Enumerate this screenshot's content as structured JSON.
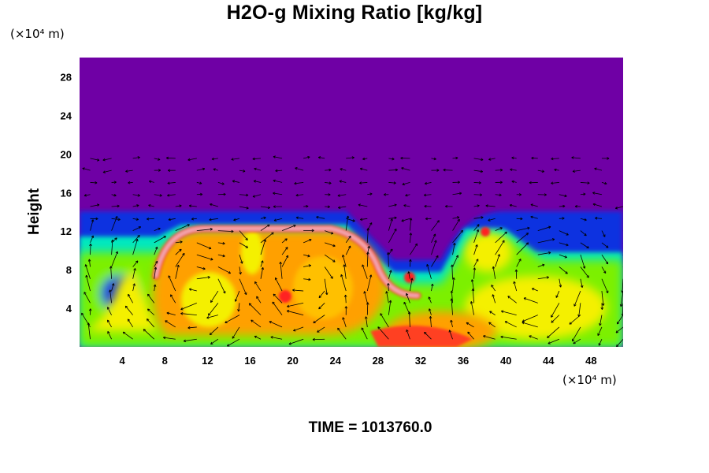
{
  "chart_data": {
    "type": "heatmap",
    "title": "H2O-g Mixing Ratio [kg/kg]",
    "ylabel": "Height",
    "xlabel": "",
    "x_unit": "(×10⁴ m)",
    "y_unit": "(×10⁴ m)",
    "xlim": [
      0,
      51
    ],
    "ylim": [
      0,
      30
    ],
    "x_ticks": [
      "4",
      "8",
      "12",
      "16",
      "20",
      "24",
      "28",
      "32",
      "36",
      "40",
      "44",
      "48"
    ],
    "x_tick_values": [
      4,
      8,
      12,
      16,
      20,
      24,
      28,
      32,
      36,
      40,
      44,
      48
    ],
    "y_ticks": [
      "4",
      "8",
      "12",
      "16",
      "20",
      "24",
      "28"
    ],
    "y_tick_values": [
      4,
      8,
      12,
      16,
      20,
      24,
      28
    ],
    "footer": "TIME = 1013760.0",
    "overlay": "wind vector arrows",
    "colors": {
      "background": "#6f00a5",
      "low": "#1030e0",
      "mid": "#00e8c0",
      "green": "#7cf000",
      "yellow": "#f4f000",
      "orange": "#ffa000",
      "red": "#ff2020",
      "pink": "#f0a8b0"
    }
  }
}
